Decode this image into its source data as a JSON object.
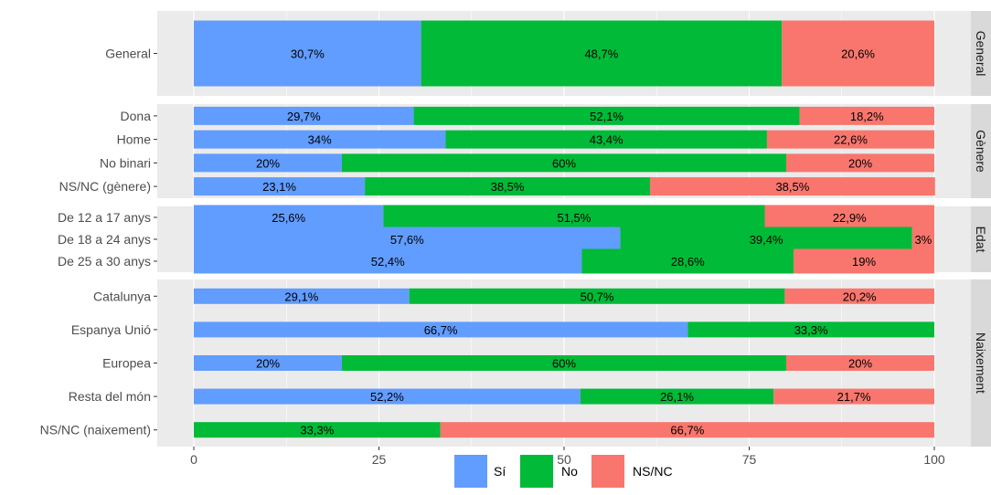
{
  "chart_data": {
    "type": "bar",
    "orientation": "horizontal",
    "stacked": true,
    "xlim": [
      0,
      100
    ],
    "x_ticks": [
      0,
      25,
      50,
      75,
      100
    ],
    "grid": true,
    "legend_position": "bottom",
    "legend": [
      {
        "name": "Sí",
        "color": "#619CFF"
      },
      {
        "name": "No",
        "color": "#00BA38"
      },
      {
        "name": "NS/NC",
        "color": "#F8766D"
      }
    ],
    "panels": [
      {
        "facet": "General",
        "rows": [
          {
            "category": "General",
            "values": [
              30.7,
              48.7,
              20.6
            ],
            "labels": [
              "30,7%",
              "48,7%",
              "20,6%"
            ]
          }
        ]
      },
      {
        "facet": "Gènere",
        "rows": [
          {
            "category": "Dona",
            "values": [
              29.7,
              52.1,
              18.2
            ],
            "labels": [
              "29,7%",
              "52,1%",
              "18,2%"
            ]
          },
          {
            "category": "Home",
            "values": [
              34,
              43.4,
              22.6
            ],
            "labels": [
              "34%",
              "43,4%",
              "22,6%"
            ]
          },
          {
            "category": "No binari",
            "values": [
              20,
              60,
              20
            ],
            "labels": [
              "20%",
              "60%",
              "20%"
            ]
          },
          {
            "category": "NS/NC (gènere)",
            "values": [
              23.1,
              38.5,
              38.5
            ],
            "labels": [
              "23,1%",
              "38,5%",
              "38,5%"
            ]
          }
        ]
      },
      {
        "facet": "Edat",
        "rows": [
          {
            "category": "De 12 a 17 anys",
            "values": [
              25.6,
              51.5,
              22.9
            ],
            "labels": [
              "25,6%",
              "51,5%",
              "22,9%"
            ]
          },
          {
            "category": "De 18 a 24 anys",
            "values": [
              57.6,
              39.4,
              3
            ],
            "labels": [
              "57,6%",
              "39,4%",
              "3%"
            ]
          },
          {
            "category": "De 25 a 30 anys",
            "values": [
              52.4,
              28.6,
              19
            ],
            "labels": [
              "52,4%",
              "28,6%",
              "19%"
            ]
          }
        ]
      },
      {
        "facet": "Naixement",
        "rows": [
          {
            "category": "Catalunya",
            "values": [
              29.1,
              50.7,
              20.2
            ],
            "labels": [
              "29,1%",
              "50,7%",
              "20,2%"
            ]
          },
          {
            "category": "Espanya Unió",
            "values": [
              66.7,
              33.3,
              0
            ],
            "labels": [
              "66,7%",
              "33,3%",
              ""
            ]
          },
          {
            "category": "Europea",
            "values": [
              20,
              60,
              20
            ],
            "labels": [
              "20%",
              "60%",
              "20%"
            ]
          },
          {
            "category": "Resta del món",
            "values": [
              52.2,
              26.1,
              21.7
            ],
            "labels": [
              "52,2%",
              "26,1%",
              "21,7%"
            ]
          },
          {
            "category": "NS/NC (naixement)",
            "values": [
              0,
              33.3,
              66.7
            ],
            "labels": [
              "",
              "33,3%",
              "66,7%"
            ]
          }
        ]
      }
    ]
  }
}
